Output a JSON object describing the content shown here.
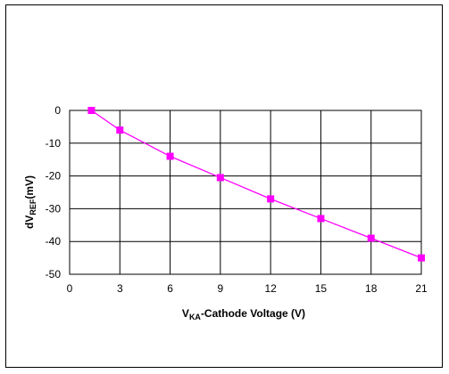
{
  "chart_data": {
    "type": "line",
    "title": "",
    "xlabel": {
      "prefix": "V",
      "subscript": "KA",
      "suffix": "-Cathode Voltage (V)"
    },
    "ylabel": {
      "prefix": "dV",
      "subscript": "REF",
      "suffix": "(mV)"
    },
    "xlim": [
      0,
      21
    ],
    "ylim": [
      -50,
      0
    ],
    "xticks": [
      0,
      3,
      6,
      9,
      12,
      15,
      18,
      21
    ],
    "yticks": [
      0,
      -10,
      -20,
      -30,
      -40,
      -50
    ],
    "grid": true,
    "legend": "none",
    "series": [
      {
        "color": "#ff00ff",
        "marker": "square",
        "x": [
          1.3,
          3,
          6,
          9,
          12,
          15,
          18,
          21
        ],
        "y": [
          0,
          -6,
          -14,
          -20.5,
          -27,
          -33,
          -39,
          -45
        ]
      }
    ]
  }
}
